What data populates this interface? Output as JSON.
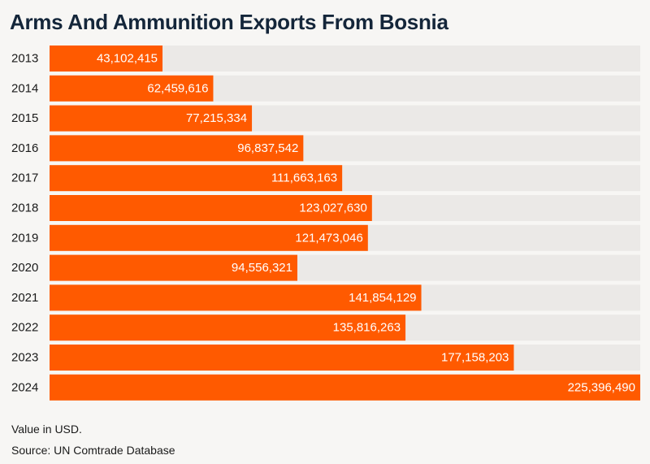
{
  "title": "Arms And Ammunition Exports From Bosnia",
  "note": "Value in USD.",
  "source": "Source: UN Comtrade Database",
  "colors": {
    "bar": "#ff5a00",
    "track": "#ebe9e7",
    "background": "#f7f6f4",
    "title": "#14263a"
  },
  "chart_data": {
    "type": "bar",
    "orientation": "horizontal",
    "categories": [
      "2013",
      "2014",
      "2015",
      "2016",
      "2017",
      "2018",
      "2019",
      "2020",
      "2021",
      "2022",
      "2023",
      "2024"
    ],
    "values": [
      43102415,
      62459616,
      77215334,
      96837542,
      111663163,
      123027630,
      121473046,
      94556321,
      141854129,
      135816263,
      177158203,
      225396490
    ],
    "value_labels": [
      "43,102,415",
      "62,459,616",
      "77,215,334",
      "96,837,542",
      "111,663,163",
      "123,027,630",
      "121,473,046",
      "94,556,321",
      "141,854,129",
      "135,816,263",
      "177,158,203",
      "225,396,490"
    ],
    "xlim": [
      0,
      225396490
    ],
    "grid": false,
    "legend": "none"
  }
}
